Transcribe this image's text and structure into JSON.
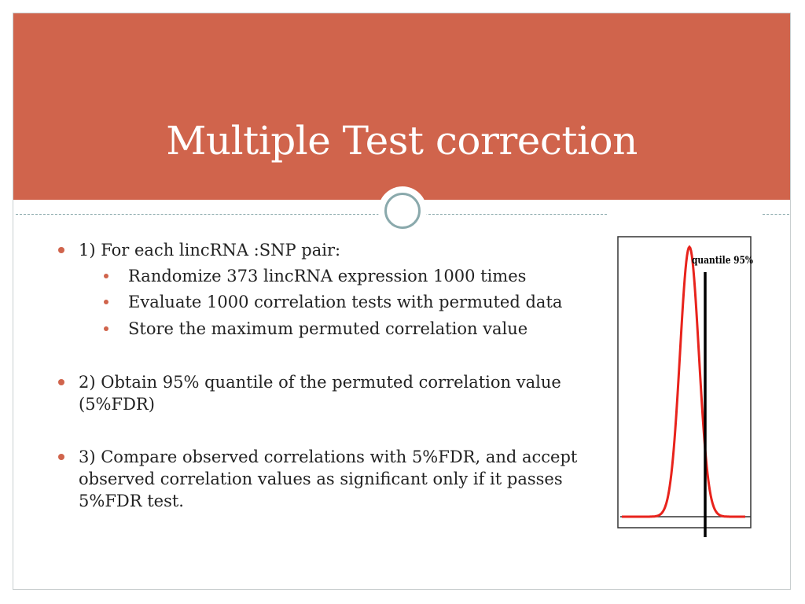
{
  "slide": {
    "title": "Multiple Test correction",
    "colors": {
      "title_band": "#d0644c",
      "accent": "#8aa9ac",
      "bullet": "#d0644c",
      "curve": "#e8231c"
    },
    "bullets": [
      {
        "text": "1) For each lincRNA :SNP pair:",
        "sub": [
          "Randomize 373 lincRNA expression 1000 times",
          "Evaluate 1000 correlation tests with permuted data",
          "Store the maximum permuted correlation value"
        ]
      },
      {
        "text": "2) Obtain 95% quantile of the permuted correlation value (5%FDR)"
      },
      {
        "text": "3) Compare observed correlations with 5%FDR, and accept observed correlation values as significant only if it passes 5%FDR test."
      }
    ]
  },
  "figure": {
    "label": "quantile 95%",
    "icon": "bell-curve-with-quantile-line"
  }
}
